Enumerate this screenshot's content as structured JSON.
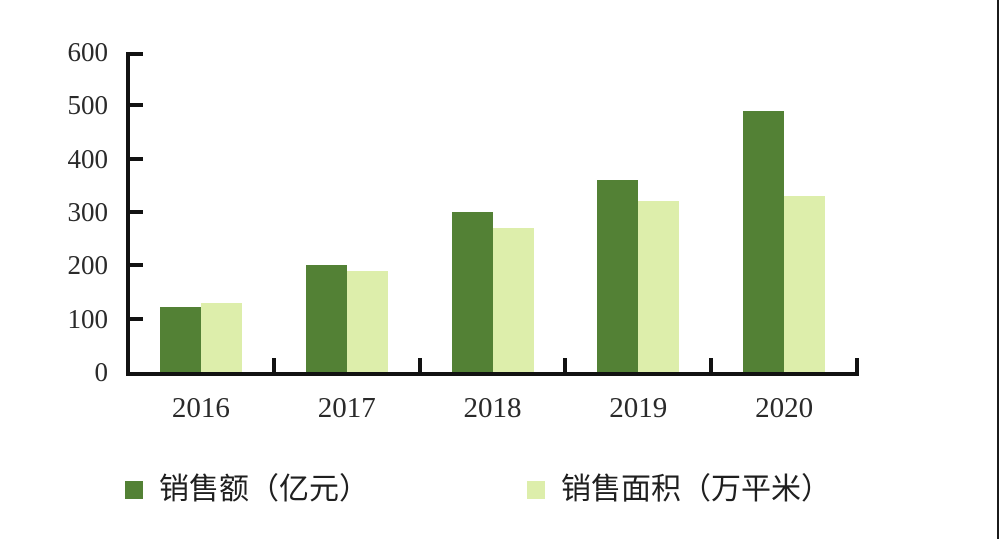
{
  "page": {
    "background": "#ffffff",
    "right_edge_color": "#1b1b1b"
  },
  "chart_data": {
    "type": "bar",
    "title": "",
    "xlabel": "",
    "ylabel": "",
    "categories": [
      "2016",
      "2017",
      "2018",
      "2019",
      "2020"
    ],
    "series": [
      {
        "key": "sales-amount",
        "name": "销售额（亿元）",
        "color": "#538135",
        "values": [
          122,
          200,
          300,
          360,
          490
        ]
      },
      {
        "key": "sales-area",
        "name": "销售面积（万平米）",
        "color": "#ddeeab",
        "values": [
          130,
          190,
          270,
          320,
          330
        ]
      }
    ],
    "yticks": [
      0,
      100,
      200,
      300,
      400,
      500,
      600
    ],
    "ylim": [
      0,
      600
    ],
    "grid": false,
    "legend_position": "bottom",
    "axis_color": "#121212",
    "text_color": "#2a2a2a"
  }
}
